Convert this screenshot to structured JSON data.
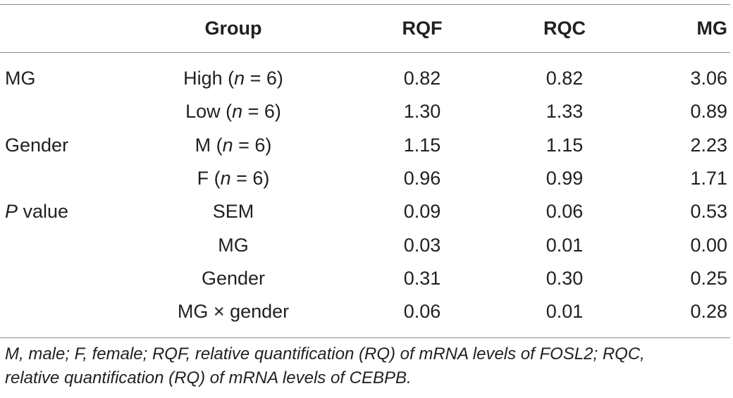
{
  "table": {
    "headers": {
      "label": "",
      "group": "Group",
      "rqf": "RQF",
      "rqc": "RQC",
      "mg": "MG"
    },
    "rows": [
      {
        "label": "MG",
        "label_italic": "",
        "label_rest": "",
        "group_pre": "High (",
        "group_n": "n",
        "group_post": " = 6)",
        "rqf": "0.82",
        "rqc": "0.82",
        "mg": "3.06"
      },
      {
        "label": "",
        "label_italic": "",
        "label_rest": "",
        "group_pre": "Low (",
        "group_n": "n",
        "group_post": " = 6)",
        "rqf": "1.30",
        "rqc": "1.33",
        "mg": "0.89"
      },
      {
        "label": "Gender",
        "label_italic": "",
        "label_rest": "",
        "group_pre": "M (",
        "group_n": "n",
        "group_post": " = 6)",
        "rqf": "1.15",
        "rqc": "1.15",
        "mg": "2.23"
      },
      {
        "label": "",
        "label_italic": "",
        "label_rest": "",
        "group_pre": "F (",
        "group_n": "n",
        "group_post": " = 6)",
        "rqf": "0.96",
        "rqc": "0.99",
        "mg": "1.71"
      },
      {
        "label": "",
        "label_italic": "P",
        "label_rest": " value",
        "group_pre": "SEM",
        "group_n": "",
        "group_post": "",
        "rqf": "0.09",
        "rqc": "0.06",
        "mg": "0.53"
      },
      {
        "label": "",
        "label_italic": "",
        "label_rest": "",
        "group_pre": "MG",
        "group_n": "",
        "group_post": "",
        "rqf": "0.03",
        "rqc": "0.01",
        "mg": "0.00"
      },
      {
        "label": "",
        "label_italic": "",
        "label_rest": "",
        "group_pre": "Gender",
        "group_n": "",
        "group_post": "",
        "rqf": "0.31",
        "rqc": "0.30",
        "mg": "0.25"
      },
      {
        "label": "",
        "label_italic": "",
        "label_rest": "",
        "group_pre": "MG × gender",
        "group_n": "",
        "group_post": "",
        "rqf": "0.06",
        "rqc": "0.01",
        "mg": "0.28"
      }
    ]
  },
  "footnote": {
    "line1": "M, male; F, female; RQF, relative quantification (RQ) of mRNA levels of FOSL2; RQC,",
    "line2": "relative quantification (RQ) of mRNA levels of CEBPB."
  }
}
